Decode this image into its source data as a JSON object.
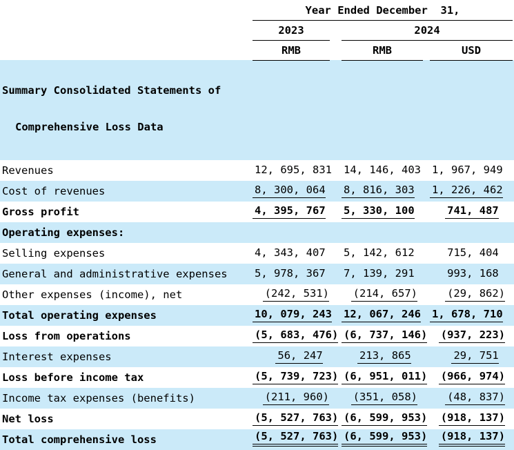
{
  "colors": {
    "stripe": "#cbeaf9",
    "text": "#000000",
    "rule": "#000000"
  },
  "table": {
    "period_header": "Year Ended December  31,",
    "years": {
      "y2023": "2023",
      "y2024": "2024"
    },
    "units": [
      "RMB",
      "RMB",
      "USD"
    ],
    "section_header": {
      "line1": "Summary Consolidated Statements of",
      "line2": "Comprehensive Loss Data"
    },
    "rows": [
      {
        "label": "Revenues",
        "values": [
          "12, 695, 831",
          "14, 146, 403",
          "1, 967, 949"
        ],
        "bold": false,
        "shaded": false,
        "underline": "none"
      },
      {
        "label": "Cost of revenues",
        "values": [
          "8, 300, 064",
          "8, 816, 303",
          "1, 226, 462"
        ],
        "bold": false,
        "shaded": true,
        "underline": "single"
      },
      {
        "label": "Gross profit",
        "values": [
          "4, 395, 767",
          "5, 330, 100",
          "741, 487"
        ],
        "bold": true,
        "shaded": false,
        "underline": "single"
      },
      {
        "label": "Operating expenses:",
        "values": [],
        "bold": true,
        "shaded": true,
        "underline": "none"
      },
      {
        "label": "Selling expenses",
        "values": [
          "4, 343, 407",
          "5, 142, 612",
          "715, 404"
        ],
        "bold": false,
        "shaded": false,
        "underline": "none"
      },
      {
        "label": "General and administrative expenses",
        "values": [
          "5, 978, 367",
          "7, 139, 291",
          "993, 168"
        ],
        "bold": false,
        "shaded": true,
        "underline": "none"
      },
      {
        "label": "Other expenses (income), net",
        "values": [
          "(242, 531)",
          "(214, 657)",
          "(29, 862)"
        ],
        "bold": false,
        "shaded": false,
        "underline": "single"
      },
      {
        "label": "Total operating expenses",
        "values": [
          "10, 079, 243",
          "12, 067, 246",
          "1, 678, 710"
        ],
        "bold": true,
        "shaded": true,
        "underline": "single"
      },
      {
        "label": "Loss from operations",
        "values": [
          "(5, 683, 476)",
          "(6, 737, 146)",
          "(937, 223)"
        ],
        "bold": true,
        "shaded": false,
        "underline": "single"
      },
      {
        "label": "Interest expenses",
        "values": [
          "56, 247",
          "213, 865",
          "29, 751"
        ],
        "bold": false,
        "shaded": true,
        "underline": "single"
      },
      {
        "label": "Loss before income tax",
        "values": [
          "(5, 739, 723)",
          "(6, 951, 011)",
          "(966, 974)"
        ],
        "bold": true,
        "shaded": false,
        "underline": "single"
      },
      {
        "label": "Income tax expenses (benefits)",
        "values": [
          "(211, 960)",
          "(351, 058)",
          "(48, 837)"
        ],
        "bold": false,
        "shaded": true,
        "underline": "single"
      },
      {
        "label": "Net loss",
        "values": [
          "(5, 527, 763)",
          "(6, 599, 953)",
          "(918, 137)"
        ],
        "bold": true,
        "shaded": false,
        "underline": "single"
      },
      {
        "label": "Total comprehensive loss",
        "values": [
          "(5, 527, 763)",
          "(6, 599, 953)",
          "(918, 137)"
        ],
        "bold": true,
        "shaded": true,
        "underline": "double"
      }
    ]
  }
}
